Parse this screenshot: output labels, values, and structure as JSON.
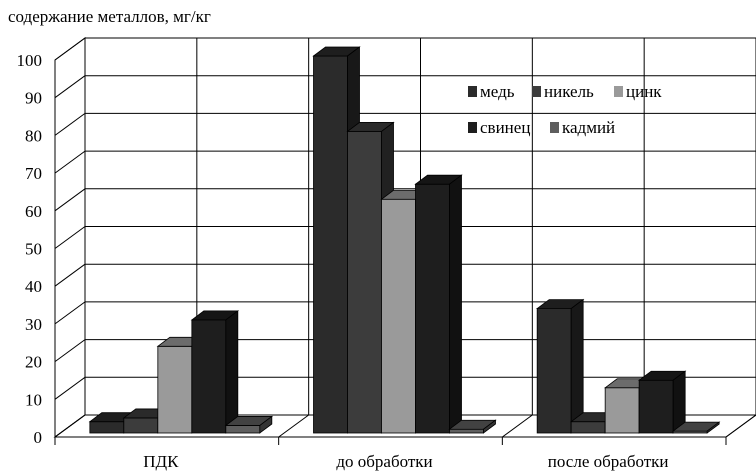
{
  "chart_data": {
    "type": "bar",
    "ylabel": "содержание металлов, мг/кг",
    "xlabel": "",
    "title": "",
    "ylim": [
      0,
      100
    ],
    "yticks": [
      0,
      10,
      20,
      30,
      40,
      50,
      60,
      70,
      80,
      90,
      100
    ],
    "categories": [
      "ПДК",
      "до обработки",
      "после обработки"
    ],
    "series": [
      {
        "name": "медь",
        "values": [
          3,
          100,
          33
        ],
        "color": "#2b2b2b"
      },
      {
        "name": "никель",
        "values": [
          4,
          80,
          3
        ],
        "color": "#3c3c3c"
      },
      {
        "name": "цинк",
        "values": [
          23,
          62,
          12
        ],
        "color": "#9a9a9a"
      },
      {
        "name": "свинец",
        "values": [
          30,
          66,
          14
        ],
        "color": "#1e1e1e"
      },
      {
        "name": "кадмий",
        "values": [
          2,
          1,
          0.5
        ],
        "color": "#5e5e5e"
      }
    ],
    "grid": true,
    "legend_position": "top-right",
    "style": "3d-clustered-column"
  }
}
